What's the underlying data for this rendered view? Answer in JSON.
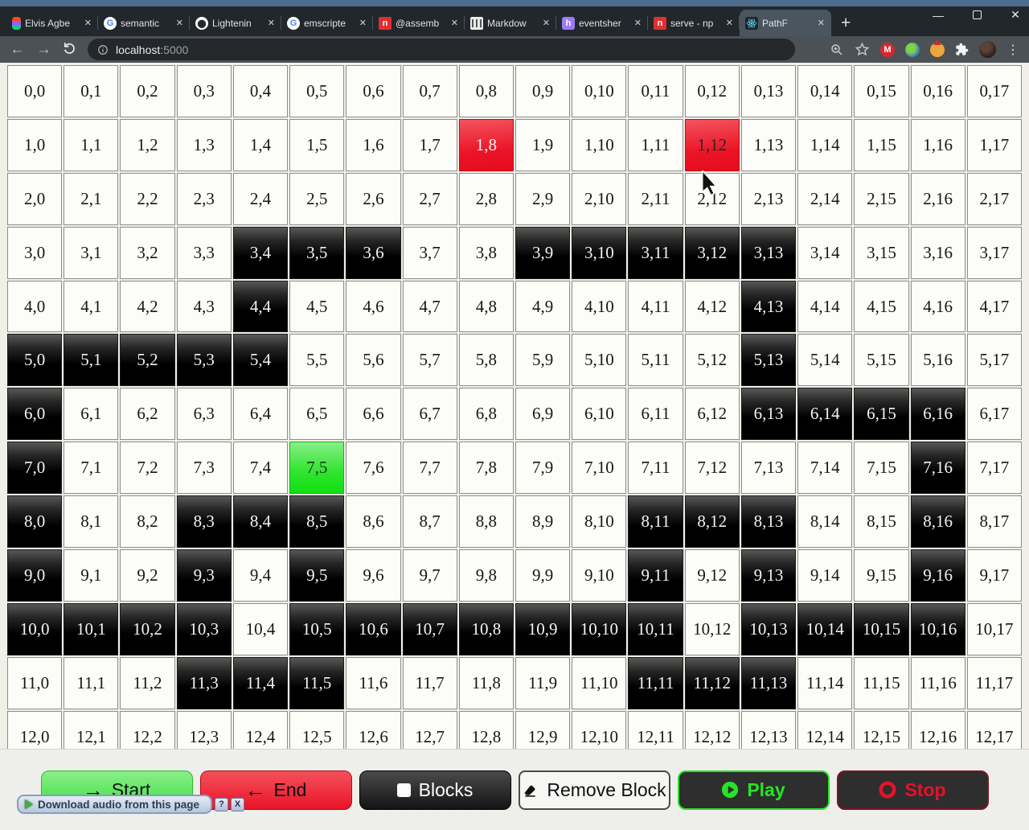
{
  "window": {
    "tabs": [
      {
        "title": "Elvis Agbe",
        "favicon": "figma"
      },
      {
        "title": "semantic",
        "favicon": "google"
      },
      {
        "title": "Lightenin",
        "favicon": "github"
      },
      {
        "title": "emscripte",
        "favicon": "google"
      },
      {
        "title": "@assemb",
        "favicon": "npm"
      },
      {
        "title": "Markdow",
        "favicon": "markdown-table"
      },
      {
        "title": "eventsher",
        "favicon": "hashnode"
      },
      {
        "title": "serve - np",
        "favicon": "npm"
      },
      {
        "title": "PathF",
        "favicon": "react"
      }
    ],
    "active_tab": 8,
    "favicon_glyphs": {
      "npm": "n",
      "hashnode": "h",
      "google": "G"
    },
    "tab_close_glyph": "✕",
    "new_tab_glyph": "+",
    "controls": {
      "minimize_glyph": "—",
      "close_glyph": "✕"
    }
  },
  "nav": {
    "back_glyph": "←",
    "forward_glyph": "→",
    "url_host": "localhost",
    "url_port": ":5000",
    "menu_glyph": "⋮",
    "extensions": {
      "mega_glyph": "M"
    }
  },
  "grid": {
    "rows": 13,
    "cols": 18,
    "label_format": "row,col",
    "block_cells": [
      [
        3,
        4
      ],
      [
        3,
        5
      ],
      [
        3,
        6
      ],
      [
        3,
        9
      ],
      [
        3,
        10
      ],
      [
        3,
        11
      ],
      [
        3,
        12
      ],
      [
        3,
        13
      ],
      [
        4,
        4
      ],
      [
        4,
        13
      ],
      [
        5,
        0
      ],
      [
        5,
        1
      ],
      [
        5,
        2
      ],
      [
        5,
        3
      ],
      [
        5,
        4
      ],
      [
        5,
        13
      ],
      [
        6,
        0
      ],
      [
        6,
        13
      ],
      [
        6,
        14
      ],
      [
        6,
        15
      ],
      [
        6,
        16
      ],
      [
        7,
        0
      ],
      [
        7,
        16
      ],
      [
        8,
        0
      ],
      [
        8,
        3
      ],
      [
        8,
        4
      ],
      [
        8,
        5
      ],
      [
        8,
        11
      ],
      [
        8,
        12
      ],
      [
        8,
        13
      ],
      [
        8,
        16
      ],
      [
        9,
        0
      ],
      [
        9,
        3
      ],
      [
        9,
        5
      ],
      [
        9,
        11
      ],
      [
        9,
        13
      ],
      [
        9,
        16
      ],
      [
        10,
        0
      ],
      [
        10,
        1
      ],
      [
        10,
        2
      ],
      [
        10,
        3
      ],
      [
        10,
        5
      ],
      [
        10,
        6
      ],
      [
        10,
        7
      ],
      [
        10,
        8
      ],
      [
        10,
        9
      ],
      [
        10,
        10
      ],
      [
        10,
        11
      ],
      [
        10,
        13
      ],
      [
        10,
        14
      ],
      [
        10,
        15
      ],
      [
        10,
        16
      ],
      [
        11,
        3
      ],
      [
        11,
        4
      ],
      [
        11,
        5
      ],
      [
        11,
        11
      ],
      [
        11,
        12
      ],
      [
        11,
        13
      ]
    ],
    "special_cells": [
      {
        "row": 1,
        "col": 8,
        "kind": "red",
        "text_style": "light"
      },
      {
        "row": 1,
        "col": 12,
        "kind": "red",
        "text_style": "dark"
      },
      {
        "row": 7,
        "col": 5,
        "kind": "green",
        "text_style": "dark"
      }
    ]
  },
  "controls": {
    "buttons": [
      {
        "id": "start",
        "label": "Start",
        "icon": "arrow-right"
      },
      {
        "id": "end",
        "label": "End",
        "icon": "arrow-left"
      },
      {
        "id": "blocks",
        "label": "Blocks",
        "icon": "square"
      },
      {
        "id": "remove-block",
        "label": "Remove Block",
        "icon": "eraser"
      },
      {
        "id": "play",
        "label": "Play",
        "icon": "play-circle"
      },
      {
        "id": "stop",
        "label": "Stop",
        "icon": "stop-circle"
      }
    ],
    "icon_glyphs": {
      "arrow-right": "→",
      "arrow-left": "←"
    }
  },
  "download_bar": {
    "label": "Download audio from this page",
    "help_label": "?",
    "close_label": "X"
  },
  "colors": {
    "start_green": "#3fdf3f",
    "end_red": "#e91426",
    "block_black": "#000000",
    "cell_white": "#fcfcf8",
    "page_bg": "#f0f0e9",
    "play_green": "#25e425",
    "stop_red": "#e3132a",
    "chrome_dark": "#22272c",
    "frame_blue": "#4e6d8e"
  }
}
